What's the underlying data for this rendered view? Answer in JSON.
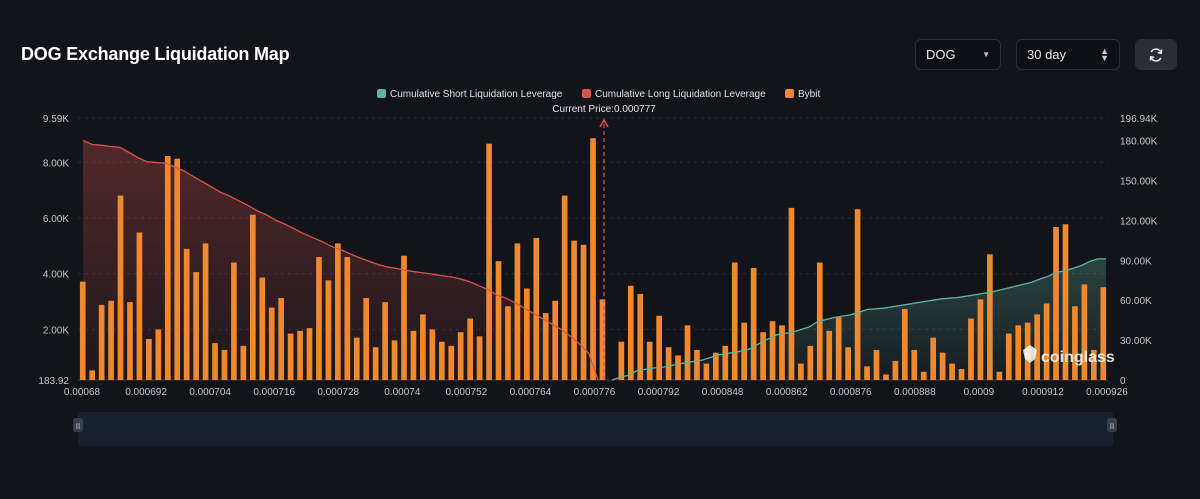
{
  "header": {
    "title": "DOG Exchange Liquidation Map",
    "coin_select": "DOG",
    "period_select": "30 day",
    "refresh_icon": "refresh-icon"
  },
  "watermark": "coinglass",
  "colors": {
    "bar": "#f0892d",
    "long": "#d9534f",
    "short": "#5fb3a2",
    "bg": "#13141a"
  },
  "chart_data": {
    "type": "bar",
    "legend": [
      {
        "name": "Cumulative Short Liquidation Leverage",
        "color": "#5fb3a2"
      },
      {
        "name": "Cumulative Long Liquidation Leverage",
        "color": "#d9534f"
      },
      {
        "name": "Bybit",
        "color": "#f0892d"
      }
    ],
    "legend_position": "top-center",
    "current_price_label": "Current Price:0.000777",
    "current_price": 0.000777,
    "y_left_ticks": [
      "183.92",
      "2.00K",
      "4.00K",
      "6.00K",
      "8.00K",
      "9.59K"
    ],
    "y_left_range": [
      183.92,
      9590
    ],
    "y_right_ticks": [
      "0",
      "30.00K",
      "60.00K",
      "90.00K",
      "120.00K",
      "150.00K",
      "180.00K",
      "196.94K"
    ],
    "y_right_range": [
      0,
      196940
    ],
    "x_tick_labels": [
      "0.00068",
      "0.000692",
      "0.000704",
      "0.000716",
      "0.000728",
      "0.00074",
      "0.000752",
      "0.000764",
      "0.000776",
      "0.000792",
      "0.000848",
      "0.000862",
      "0.000876",
      "0.000888",
      "0.0009",
      "0.000912",
      "0.000926"
    ],
    "bars": [
      3600,
      350,
      2750,
      2900,
      6750,
      2850,
      5400,
      1500,
      1850,
      8200,
      8100,
      4800,
      3950,
      5000,
      1350,
      1100,
      4300,
      1250,
      6050,
      3750,
      2650,
      3000,
      1700,
      1800,
      1900,
      4500,
      3650,
      5000,
      4500,
      1550,
      3000,
      1200,
      2850,
      1450,
      4550,
      1800,
      2400,
      1850,
      1400,
      1250,
      1750,
      2250,
      1600,
      8650,
      4350,
      2700,
      5000,
      3350,
      5200,
      2450,
      2900,
      6750,
      5100,
      4950,
      8850,
      2950,
      0,
      1400,
      3450,
      3150,
      1400,
      2350,
      1200,
      900,
      2000,
      1100,
      600,
      1000,
      1250,
      4300,
      2100,
      4100,
      1750,
      2150,
      2000,
      6300,
      600,
      1250,
      4300,
      1800,
      2300,
      1200,
      6250,
      500,
      1100,
      200,
      700,
      2600,
      1100,
      300,
      1550,
      1000,
      600,
      400,
      2250,
      2950,
      4600,
      300,
      1700,
      2000,
      2100,
      2400,
      2800,
      5600,
      5700,
      2700,
      3500,
      1100,
      3400
    ],
    "long_cumulative": [
      180000,
      177000,
      176500,
      175500,
      175000,
      171000,
      167000,
      164000,
      163500,
      163000,
      160000,
      157000,
      153000,
      149000,
      145000,
      141000,
      138000,
      134500,
      131000,
      127000,
      124000,
      120000,
      117000,
      113500,
      110000,
      107000,
      104000,
      100500,
      98000,
      95000,
      92000,
      89500,
      87000,
      85000,
      84000,
      82500,
      81500,
      80500,
      79500,
      78500,
      77500,
      76000,
      74000,
      71000,
      68000,
      64000,
      61500,
      58000,
      54000,
      50000,
      46000,
      42000,
      38000,
      33000,
      27000,
      20000,
      0
    ],
    "short_cumulative": [
      0,
      2000,
      3500,
      7000,
      8000,
      9000,
      9500,
      10500,
      12000,
      13000,
      14000,
      15000,
      17000,
      19000,
      20000,
      21000,
      22000,
      24000,
      28000,
      31000,
      34000,
      35000,
      36000,
      38000,
      40000,
      44000,
      45500,
      47000,
      48000,
      49000,
      51000,
      53000,
      53500,
      54000,
      55000,
      56000,
      57000,
      58000,
      59000,
      60000,
      61000,
      61500,
      62000,
      63000,
      64000,
      65000,
      66000,
      67500,
      69000,
      70500,
      72000,
      73500,
      76000,
      78000,
      81000,
      82000,
      84000,
      86000,
      89000,
      91000,
      91000
    ]
  }
}
